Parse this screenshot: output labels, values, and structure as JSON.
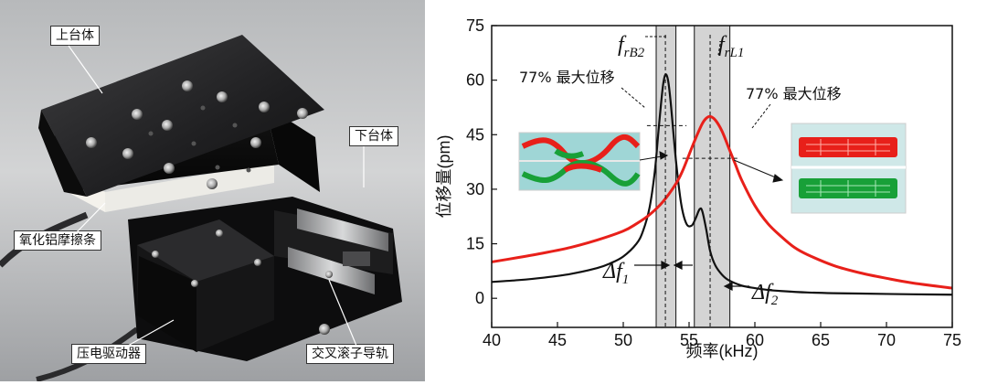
{
  "photo": {
    "labels": {
      "upper_stage": "上台体",
      "lower_stage": "下台体",
      "alumina_friction_strip": "氧化铝摩擦条",
      "piezo_driver": "压电驱动器",
      "cross_roller_guide": "交叉滚子导轨"
    }
  },
  "chart_data": {
    "type": "line",
    "title": "",
    "xlabel": "频率(kHz)",
    "ylabel": "位移量(pm)",
    "xlim": [
      40,
      75
    ],
    "ylim": [
      -8,
      75
    ],
    "xticks": [
      40,
      45,
      50,
      55,
      60,
      65,
      70,
      75
    ],
    "yticks": [
      0,
      15,
      30,
      45,
      60,
      75
    ],
    "grid": false,
    "colors": {
      "series_black": "#111111",
      "series_red": "#e8201a",
      "band": "#d4d4d4"
    },
    "series": [
      {
        "color": "#111111",
        "x": [
          40,
          42,
          44,
          46,
          48,
          49,
          50,
          51,
          51.5,
          52,
          52.4,
          52.7,
          53,
          53.2,
          53.4,
          53.6,
          54,
          54.4,
          54.8,
          55.2,
          55.5,
          55.8,
          56,
          56.3,
          56.6,
          57,
          57.5,
          58,
          59,
          60,
          61,
          62,
          64,
          66,
          68,
          70,
          72,
          75
        ],
        "y": [
          4.5,
          5.0,
          5.7,
          6.7,
          8.3,
          9.6,
          11.5,
          15,
          18.5,
          25,
          35,
          47,
          58,
          61.5,
          60,
          54,
          38,
          26,
          20.5,
          20,
          22,
          24.5,
          24,
          19,
          13,
          9,
          6.5,
          5,
          3.5,
          2.8,
          2.3,
          2.0,
          1.6,
          1.4,
          1.3,
          1.2,
          1.1,
          1.0
        ]
      },
      {
        "color": "#e8201a",
        "x": [
          40,
          42,
          44,
          46,
          48,
          50,
          51,
          52,
          53,
          54,
          54.5,
          55,
          55.5,
          56,
          56.3,
          56.6,
          57,
          57.5,
          58,
          58.5,
          59,
          60,
          61,
          62,
          63,
          64,
          66,
          68,
          70,
          72,
          75
        ],
        "y": [
          10,
          11.2,
          12.5,
          14,
          16,
          18.5,
          20.5,
          23,
          26.5,
          31.5,
          35,
          39.5,
          44,
          48,
          49.5,
          50,
          49,
          46,
          41.5,
          37,
          32.5,
          25.5,
          20.5,
          17,
          14,
          12,
          9,
          7,
          5.5,
          4.2,
          2.8
        ]
      }
    ],
    "bands": [
      [
        52.5,
        54.0
      ],
      [
        55.4,
        58.1
      ]
    ],
    "peak_lines_x": [
      53.2,
      56.6
    ],
    "level_lines": [
      {
        "x": [
          51.8,
          54.8
        ],
        "y": 47.5
      },
      {
        "x": [
          54.5,
          58.8
        ],
        "y": 38.5
      }
    ],
    "annotations": {
      "peak1_label": "f",
      "peak1_sub": "rB2",
      "peak2_label": "f",
      "peak2_sub": "rL1",
      "pct_label_1": "77% 最大位移",
      "pct_label_2": "77% 最大位移",
      "bw1_label": "Δf",
      "bw1_sub": "1",
      "bw2_label": "Δf",
      "bw2_sub": "2"
    }
  }
}
